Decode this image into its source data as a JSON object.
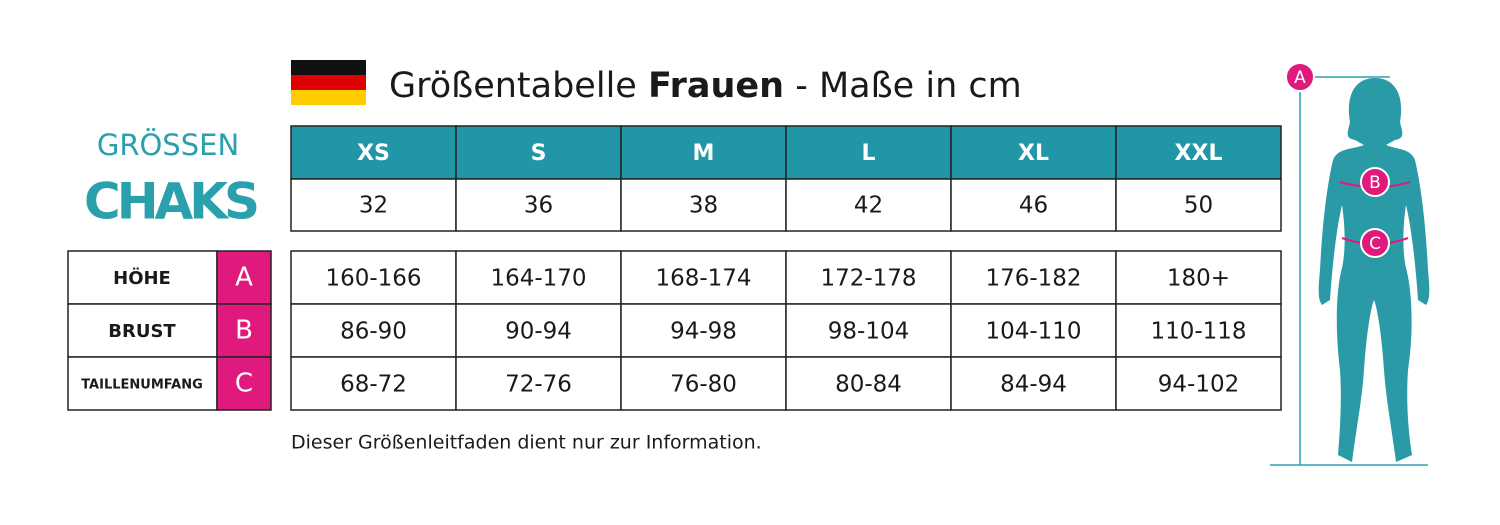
{
  "header": {
    "title_regular": "Größentabelle",
    "title_bold": "Frauen",
    "title_suffix": "- Maße in cm"
  },
  "brand": {
    "label": "GRÖSSEN",
    "logo": "CHAKS"
  },
  "sizes": {
    "labels": [
      "XS",
      "S",
      "M",
      "L",
      "XL",
      "XXL"
    ],
    "numbers": [
      32,
      36,
      38,
      42,
      46,
      50
    ]
  },
  "measurements": [
    {
      "label": "HÖHE",
      "letter": "A",
      "values": [
        "160-166",
        "164-170",
        "168-174",
        "172-178",
        "176-182",
        "180+"
      ]
    },
    {
      "label": "BRUST",
      "letter": "B",
      "values": [
        "86-90",
        "90-94",
        "94-98",
        "98-104",
        "104-110",
        "110-118"
      ]
    },
    {
      "label": "TAILLENUMFANG",
      "letter": "C",
      "values": [
        "68-72",
        "72-76",
        "76-80",
        "80-84",
        "84-94",
        "94-102"
      ]
    }
  ],
  "note": "Dieser Größenleitfaden dient nur zur Information."
}
